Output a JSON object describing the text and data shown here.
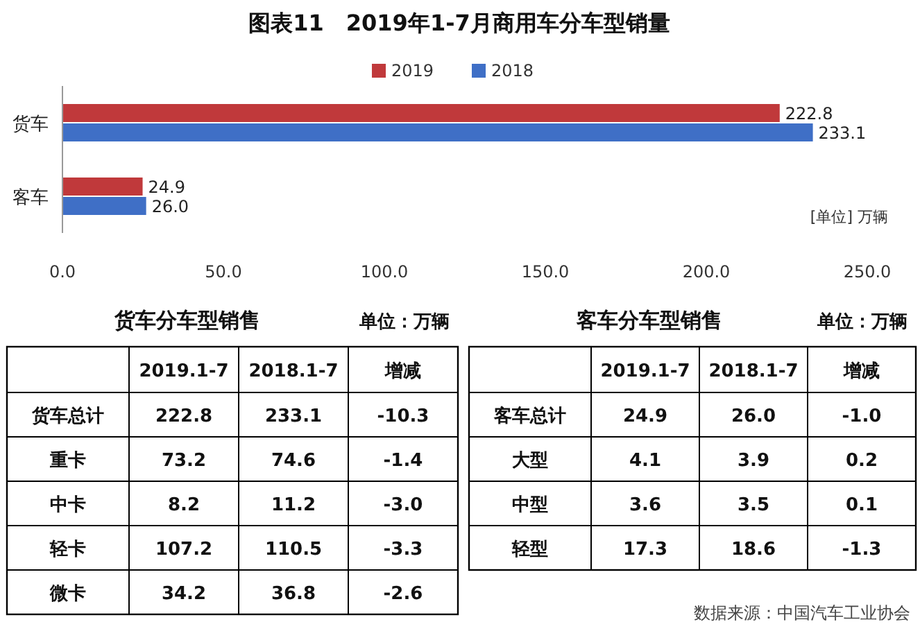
{
  "chart_data": [
    {
      "type": "bar",
      "title": "图表11　2019年1-7月商用车分车型销量",
      "orientation": "horizontal",
      "categories": [
        "货车",
        "客车"
      ],
      "legend": "top",
      "series": [
        {
          "name": "2019",
          "color": "#c0393b",
          "values": [
            222.8,
            24.9
          ],
          "value_labels": [
            "222.8",
            "24.9"
          ]
        },
        {
          "name": "2018",
          "color": "#3f6fc6",
          "values": [
            233.1,
            26.0
          ],
          "value_labels": [
            "233.1",
            "26.0"
          ]
        }
      ],
      "xlim": [
        0,
        250
      ],
      "xticks": [
        {
          "value": 0,
          "label": "0.0"
        },
        {
          "value": 50,
          "label": "50.0"
        },
        {
          "value": 100,
          "label": "100.0"
        },
        {
          "value": 150,
          "label": "150.0"
        },
        {
          "value": 200,
          "label": "200.0"
        },
        {
          "value": 250,
          "label": "250.0"
        }
      ],
      "annotations": [
        "[单位] 万辆"
      ]
    },
    {
      "type": "other",
      "title": "货车分车型销售",
      "annotations": [
        "单位：万辆"
      ],
      "categories": [
        "货车总计",
        "重卡",
        "中卡",
        "轻卡",
        "微卡"
      ],
      "series": [
        {
          "name": "2019.1-7",
          "values": [
            222.8,
            73.2,
            8.2,
            107.2,
            34.2
          ],
          "value_labels": [
            "222.8",
            "73.2",
            "8.2",
            "107.2",
            "34.2"
          ]
        },
        {
          "name": "2018.1-7",
          "values": [
            233.1,
            74.6,
            11.2,
            110.5,
            36.8
          ],
          "value_labels": [
            "233.1",
            "74.6",
            "11.2",
            "110.5",
            "36.8"
          ]
        },
        {
          "name": "增减",
          "values": [
            -10.3,
            -1.4,
            -3.0,
            -3.3,
            -2.6
          ],
          "value_labels": [
            "-10.3",
            "-1.4",
            "-3.0",
            "-3.3",
            "-2.6"
          ]
        }
      ]
    },
    {
      "type": "other",
      "title": "客车分车型销售",
      "annotations": [
        "单位：万辆",
        "数据来源：中国汽车工业协会"
      ],
      "categories": [
        "客车总计",
        "大型",
        "中型",
        "轻型"
      ],
      "series": [
        {
          "name": "2019.1-7",
          "values": [
            24.9,
            4.1,
            3.6,
            17.3
          ],
          "value_labels": [
            "24.9",
            "4.1",
            "3.6",
            "17.3"
          ]
        },
        {
          "name": "2018.1-7",
          "values": [
            26.0,
            3.9,
            3.5,
            18.6
          ],
          "value_labels": [
            "26.0",
            "3.9",
            "3.5",
            "18.6"
          ]
        },
        {
          "name": "增减",
          "values": [
            -1.0,
            0.2,
            0.1,
            -1.3
          ],
          "value_labels": [
            "-1.0",
            "0.2",
            "0.1",
            "-1.3"
          ]
        }
      ]
    }
  ]
}
